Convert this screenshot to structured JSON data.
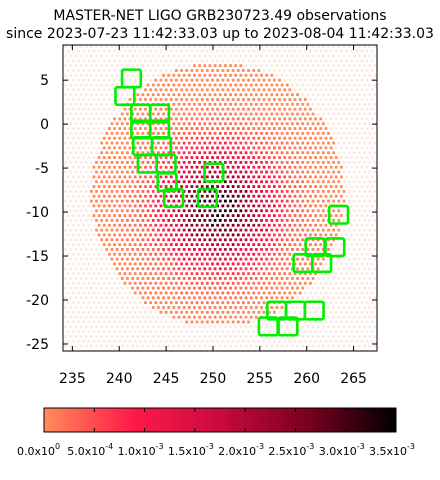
{
  "chart_data": {
    "type": "heatmap",
    "title_line1": "MASTER-NET LIGO GRB230723.49 observations",
    "title_line2": "since 2023-07-23 11:42:33.03 up to 2023-08-04 11:42:33.03",
    "xlim": [
      234,
      267.5
    ],
    "ylim": [
      -25.8,
      9
    ],
    "xticks": [
      "235",
      "240",
      "245",
      "250",
      "255",
      "260",
      "265"
    ],
    "yticks": [
      "5",
      "0",
      "-5",
      "-10",
      "-15",
      "-20",
      "-25"
    ],
    "probability_region": {
      "center": [
        250.5,
        -8
      ],
      "rx": 13.5,
      "ry": 15
    },
    "peak": [
      250.5,
      -9.5
    ],
    "colorbar": {
      "min": 0,
      "max": 0.0035,
      "labels": [
        {
          "text": "0.0x10",
          "exp": "0"
        },
        {
          "text": "5.0x10",
          "exp": "-4"
        },
        {
          "text": "1.0x10",
          "exp": "-3"
        },
        {
          "text": "1.5x10",
          "exp": "-3"
        },
        {
          "text": "2.0x10",
          "exp": "-3"
        },
        {
          "text": "2.5x10",
          "exp": "-3"
        },
        {
          "text": "3.0x10",
          "exp": "-3"
        },
        {
          "text": "3.5x10",
          "exp": "-3"
        }
      ],
      "stops": [
        "#ff8c5a",
        "#ff1a4a",
        "#c80a3c",
        "#7a0020",
        "#000000"
      ]
    },
    "observed_fields_color": "#00ee00",
    "observed_fields": [
      [
        241.3,
        5.2
      ],
      [
        240.6,
        3.2
      ],
      [
        242.3,
        1.2
      ],
      [
        244.3,
        1.2
      ],
      [
        242.3,
        -0.6
      ],
      [
        244.3,
        -0.6
      ],
      [
        242.5,
        -2.5
      ],
      [
        244.5,
        -2.5
      ],
      [
        243.0,
        -4.5
      ],
      [
        245.0,
        -4.5
      ],
      [
        245.1,
        -6.6
      ],
      [
        245.8,
        -8.4
      ],
      [
        250.1,
        -5.5
      ],
      [
        249.4,
        -8.4
      ],
      [
        263.4,
        -10.3
      ],
      [
        260.9,
        -14.0
      ],
      [
        263.0,
        -14.0
      ],
      [
        259.6,
        -15.8
      ],
      [
        261.6,
        -15.8
      ],
      [
        256.8,
        -21.2
      ],
      [
        258.8,
        -21.2
      ],
      [
        260.8,
        -21.2
      ],
      [
        255.9,
        -23.0
      ],
      [
        258.0,
        -23.0
      ]
    ],
    "field_size": [
      2.0,
      2.0
    ]
  }
}
